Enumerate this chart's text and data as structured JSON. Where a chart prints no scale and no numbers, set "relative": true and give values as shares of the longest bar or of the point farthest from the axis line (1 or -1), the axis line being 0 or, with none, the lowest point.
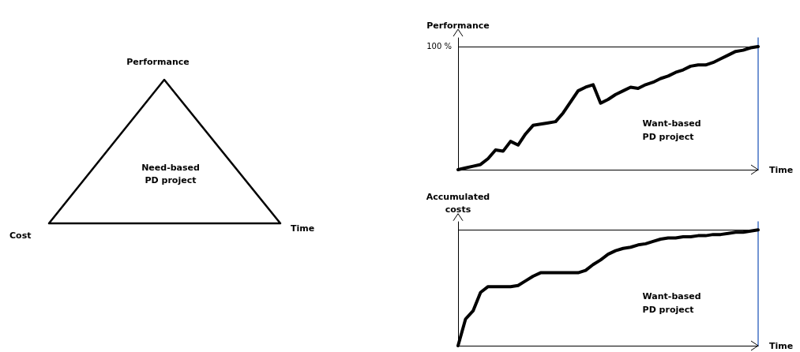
{
  "chart_data": [
    {
      "type": "other",
      "annotations": [
        "Performance",
        "Cost",
        "Time",
        "Need-based PD project"
      ]
    },
    {
      "type": "line",
      "relative": true,
      "ylabel": "Performance",
      "xlabel": "Time",
      "annotations": [
        "Want-based PD project"
      ],
      "marker": "none",
      "line_style": "solid",
      "categories": [
        null,
        null,
        null,
        null,
        null,
        null,
        null,
        null,
        null,
        null,
        null,
        null,
        null,
        null,
        null,
        null,
        null,
        null,
        null,
        null,
        null,
        null,
        null,
        null,
        null,
        null,
        null,
        null,
        null,
        null,
        null,
        null,
        null,
        null,
        null,
        null,
        null,
        null,
        null,
        null,
        null
      ],
      "series": [
        {
          "color": "#000000",
          "values": [
            0,
            0.014,
            0.028,
            0.042,
            0.09,
            0.16,
            0.15,
            0.23,
            0.2,
            0.29,
            0.36,
            0.37,
            0.38,
            0.39,
            0.46,
            0.55,
            0.64,
            0.67,
            0.69,
            0.54,
            0.57,
            0.61,
            0.64,
            0.67,
            0.66,
            0.69,
            0.71,
            0.74,
            0.76,
            0.79,
            0.81,
            0.84,
            0.85,
            0.85,
            0.87,
            0.9,
            0.93,
            0.96,
            0.97,
            0.99,
            1
          ]
        }
      ],
      "ref_lines": [
        {
          "axis": "y",
          "value": 1,
          "label": "100 %",
          "color": "#000000"
        }
      ]
    },
    {
      "type": "line",
      "relative": true,
      "ylabel": "Accumulated costs",
      "xlabel": "Time",
      "annotations": [
        "Want-based PD project"
      ],
      "marker": "none",
      "line_style": "solid",
      "categories": [
        null,
        null,
        null,
        null,
        null,
        null,
        null,
        null,
        null,
        null,
        null,
        null,
        null,
        null,
        null,
        null,
        null,
        null,
        null,
        null,
        null,
        null,
        null,
        null,
        null,
        null,
        null,
        null,
        null,
        null,
        null,
        null,
        null,
        null,
        null,
        null,
        null,
        null,
        null,
        null,
        null
      ],
      "series": [
        {
          "color": "#000000",
          "values": [
            0,
            0.23,
            0.3,
            0.46,
            0.51,
            0.51,
            0.51,
            0.51,
            0.52,
            0.56,
            0.6,
            0.63,
            0.63,
            0.63,
            0.63,
            0.63,
            0.63,
            0.65,
            0.7,
            0.74,
            0.79,
            0.82,
            0.84,
            0.85,
            0.87,
            0.88,
            0.9,
            0.92,
            0.93,
            0.93,
            0.94,
            0.94,
            0.95,
            0.95,
            0.96,
            0.96,
            0.97,
            0.98,
            0.98,
            0.99,
            1
          ]
        }
      ],
      "ref_lines": [
        {
          "axis": "y",
          "value": 1,
          "color": "#000000"
        }
      ]
    }
  ]
}
